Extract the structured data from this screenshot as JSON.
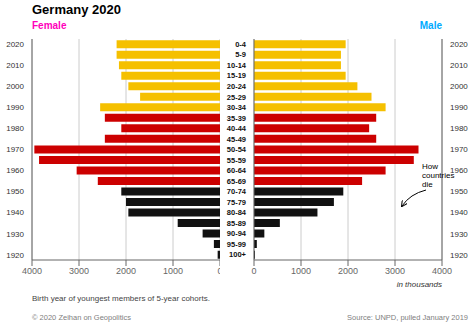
{
  "chart_data": {
    "type": "bar",
    "orientation": "horizontal",
    "title": "Germany 2020",
    "categories": [
      "100+",
      "95-99",
      "90-94",
      "85-89",
      "80-84",
      "75-79",
      "70-74",
      "65-69",
      "60-64",
      "55-59",
      "50-54",
      "45-49",
      "40-44",
      "35-39",
      "30-34",
      "25-29",
      "20-24",
      "15-19",
      "10-14",
      "5-9",
      "0-4"
    ],
    "birth_years": [
      "1920",
      null,
      "1930",
      null,
      "1940",
      null,
      "1950",
      null,
      "1960",
      null,
      "1970",
      null,
      "1980",
      null,
      "1990",
      null,
      "2000",
      null,
      "2010",
      null,
      "2020"
    ],
    "series": [
      {
        "name": "Female",
        "color": "#ff00bb",
        "values": [
          50,
          130,
          370,
          900,
          1950,
          2000,
          2100,
          2600,
          3050,
          3850,
          3950,
          2450,
          2100,
          2450,
          2550,
          1700,
          1950,
          2100,
          2150,
          2200,
          2200
        ],
        "colors": [
          "#111111",
          "#111111",
          "#111111",
          "#111111",
          "#111111",
          "#111111",
          "#111111",
          "#cc0000",
          "#cc0000",
          "#cc0000",
          "#cc0000",
          "#cc0000",
          "#cc0000",
          "#cc0000",
          "#f5c000",
          "#f5c000",
          "#f5c000",
          "#f5c000",
          "#f5c000",
          "#f5c000",
          "#f5c000"
        ],
        "xlim": [
          4000,
          0
        ],
        "xticks": [
          0,
          1000,
          2000,
          3000,
          4000
        ]
      },
      {
        "name": "Male",
        "color": "#00aaff",
        "values": [
          20,
          60,
          220,
          550,
          1350,
          1700,
          1900,
          2300,
          2800,
          3400,
          3500,
          2600,
          2450,
          2600,
          2800,
          2500,
          2200,
          1950,
          1850,
          1850,
          1950
        ],
        "colors": [
          "#111111",
          "#111111",
          "#111111",
          "#111111",
          "#111111",
          "#111111",
          "#111111",
          "#cc0000",
          "#cc0000",
          "#cc0000",
          "#cc0000",
          "#cc0000",
          "#cc0000",
          "#cc0000",
          "#f5c000",
          "#f5c000",
          "#f5c000",
          "#f5c000",
          "#f5c000",
          "#f5c000",
          "#f5c000"
        ],
        "xlim": [
          0,
          4000
        ],
        "xticks": [
          0,
          1000,
          2000,
          3000,
          4000
        ]
      }
    ],
    "grid": true,
    "unit_label": "in thousands",
    "annotations": [
      "How\ncountries\ndie"
    ],
    "footnote": "Birth year of youngest members of 5-year cohorts.",
    "copyright": "© 2020 Zeihan on Geopolitics",
    "source": "Source: UNPD, pulled January 2019"
  }
}
